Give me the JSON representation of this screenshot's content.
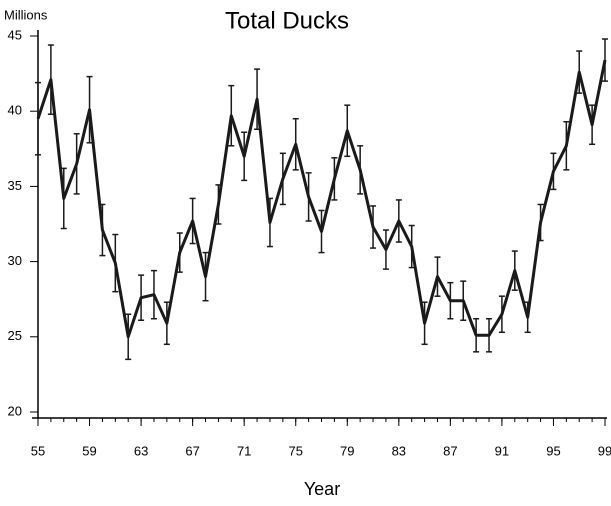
{
  "chart_data": {
    "type": "line",
    "title": "Total Ducks",
    "x_label": "Year",
    "y_label": "Millions",
    "x": [
      55,
      56,
      57,
      58,
      59,
      60,
      61,
      62,
      63,
      64,
      65,
      66,
      67,
      68,
      69,
      70,
      71,
      72,
      73,
      74,
      75,
      76,
      77,
      78,
      79,
      80,
      81,
      82,
      83,
      84,
      85,
      86,
      87,
      88,
      89,
      90,
      91,
      92,
      93,
      94,
      95,
      96,
      97,
      98,
      99
    ],
    "series": [
      {
        "name": "Total Ducks",
        "color": "#1a1a1a",
        "values": [
          39.5,
          42.1,
          34.2,
          36.5,
          40.1,
          32.1,
          29.9,
          25,
          27.6,
          27.8,
          25.9,
          30.6,
          32.7,
          29,
          33.8,
          39.7,
          37,
          40.8,
          32.6,
          35.5,
          37.8,
          34.3,
          32,
          35.5,
          38.7,
          36.1,
          32.3,
          30.8,
          32.7,
          31,
          25.9,
          29,
          27.4,
          27.4,
          25.1,
          25.1,
          26.5,
          29.4,
          26.3,
          32.6,
          36,
          37.7,
          42.6,
          39.1,
          43.4
        ],
        "errors": [
          2.4,
          2.3,
          2,
          2,
          2.2,
          1.7,
          1.9,
          1.5,
          1.5,
          1.6,
          1.4,
          1.3,
          1.5,
          1.6,
          1.3,
          2,
          1.6,
          2,
          1.6,
          1.7,
          1.7,
          1.6,
          1.4,
          1.4,
          1.7,
          1.6,
          1.4,
          1.3,
          1.4,
          1.4,
          1.4,
          1.3,
          1.2,
          1.3,
          1.1,
          1.1,
          1.2,
          1.3,
          1,
          1.2,
          1.2,
          1.6,
          1.4,
          1.3,
          1.4
        ]
      }
    ],
    "xlim": [
      55,
      99
    ],
    "xticks": [
      55,
      59,
      63,
      67,
      71,
      75,
      79,
      83,
      87,
      91,
      95,
      99
    ],
    "ylim": [
      20,
      45
    ],
    "yticks": [
      20,
      25,
      30,
      35,
      40,
      45
    ],
    "grid": false
  }
}
